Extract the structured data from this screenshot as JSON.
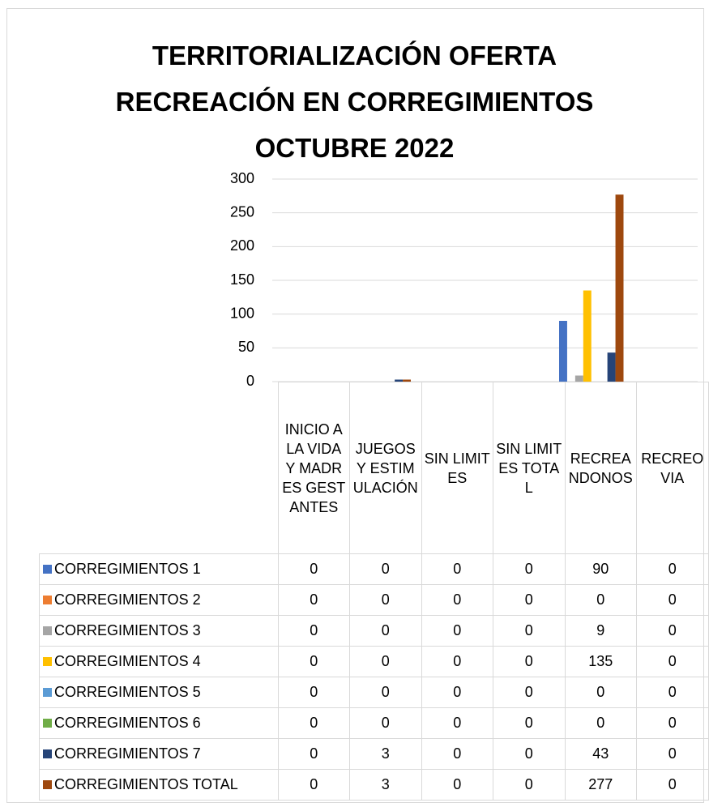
{
  "chart_data": {
    "type": "bar",
    "title": "TERRITORIALIZACIÓN OFERTA\nRECREACIÓN EN CORREGIMIENTOS\nOCTUBRE 2022",
    "categories": [
      "INICIO A LA VIDA Y MADRES GESTANTES",
      "JUEGOS Y ESTIMULACIÓN",
      "SIN LIMITES",
      "SIN LIMITES TOTAL",
      "RECREANDONOS",
      "RECREOVIA"
    ],
    "series": [
      {
        "name": "CORREGIMIENTOS 1",
        "color": "#4472c4",
        "values": [
          0,
          0,
          0,
          0,
          90,
          0
        ]
      },
      {
        "name": "CORREGIMIENTOS 2",
        "color": "#ed7d31",
        "values": [
          0,
          0,
          0,
          0,
          0,
          0
        ]
      },
      {
        "name": "CORREGIMIENTOS 3",
        "color": "#a5a5a5",
        "values": [
          0,
          0,
          0,
          0,
          9,
          0
        ]
      },
      {
        "name": "CORREGIMIENTOS 4",
        "color": "#ffc000",
        "values": [
          0,
          0,
          0,
          0,
          135,
          0
        ]
      },
      {
        "name": "CORREGIMIENTOS 5",
        "color": "#5b9bd5",
        "values": [
          0,
          0,
          0,
          0,
          0,
          0
        ]
      },
      {
        "name": "CORREGIMIENTOS 6",
        "color": "#70ad47",
        "values": [
          0,
          0,
          0,
          0,
          0,
          0
        ]
      },
      {
        "name": "CORREGIMIENTOS 7",
        "color": "#264478",
        "values": [
          0,
          3,
          0,
          0,
          43,
          0
        ]
      },
      {
        "name": "CORREGIMIENTOS TOTAL",
        "color": "#9e480e",
        "values": [
          0,
          3,
          0,
          0,
          277,
          0
        ]
      }
    ],
    "ylim": [
      0,
      300
    ],
    "yticks": [
      0,
      50,
      100,
      150,
      200,
      250,
      300
    ],
    "grid": true
  }
}
